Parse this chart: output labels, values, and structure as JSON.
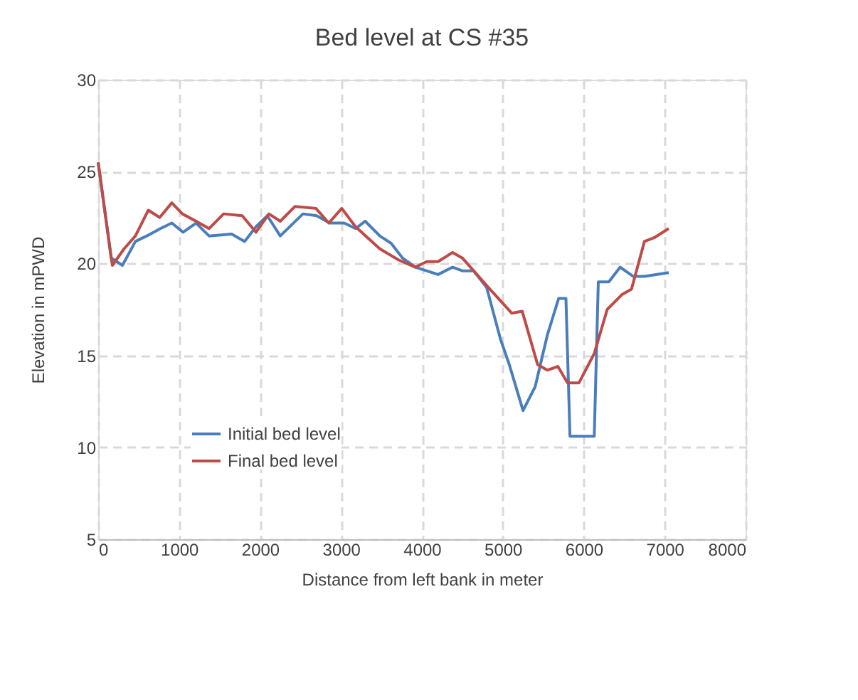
{
  "chart_data": {
    "type": "line",
    "title": "Bed level at CS #35",
    "xlabel": "Distance from left bank in meter",
    "ylabel": "Elevation in  mPWD",
    "xlim": [
      0,
      8000
    ],
    "xticks": [
      0,
      1000,
      2000,
      3000,
      4000,
      5000,
      6000,
      7000,
      8000
    ],
    "ylim": [
      5,
      30
    ],
    "yticks": [
      5,
      10,
      15,
      20,
      25,
      30
    ],
    "grid": true,
    "legend": "bottom left",
    "marker": "none",
    "line_style": "solid",
    "series": [
      {
        "name": "Initial bed level",
        "color": "#4a7ebb",
        "x": [
          0,
          160,
          300,
          460,
          600,
          770,
          910,
          1050,
          1210,
          1370,
          1650,
          1810,
          1950,
          2090,
          2250,
          2530,
          2700,
          2860,
          3040,
          3180,
          3300,
          3480,
          3620,
          3760,
          3920,
          4200,
          4380,
          4500,
          4640,
          4800,
          4970,
          5080,
          5250,
          5400,
          5550,
          5690,
          5780,
          5830,
          6130,
          6180,
          6310,
          6450,
          6610,
          6750,
          7050
        ],
        "values": [
          25.5,
          20.3,
          19.9,
          21.2,
          21.5,
          21.9,
          22.2,
          21.7,
          22.2,
          21.5,
          21.6,
          21.2,
          22.0,
          22.6,
          21.5,
          22.7,
          22.6,
          22.2,
          22.2,
          21.9,
          22.3,
          21.5,
          21.1,
          20.3,
          19.8,
          19.4,
          19.8,
          19.6,
          19.6,
          18.7,
          15.9,
          14.5,
          12.0,
          13.3,
          16.1,
          18.1,
          18.1,
          10.6,
          10.6,
          19.0,
          19.0,
          19.8,
          19.3,
          19.3,
          19.5
        ]
      },
      {
        "name": "Final bed level",
        "color": "#be4b48",
        "x": [
          0,
          175,
          320,
          460,
          620,
          760,
          910,
          1040,
          1210,
          1370,
          1550,
          1780,
          1950,
          2110,
          2250,
          2430,
          2690,
          2850,
          3010,
          3180,
          3480,
          3710,
          3920,
          4060,
          4200,
          4380,
          4500,
          4800,
          5110,
          5240,
          5430,
          5550,
          5680,
          5800,
          5940,
          6130,
          6290,
          6470,
          6590,
          6750,
          6870,
          7050
        ],
        "values": [
          25.5,
          19.9,
          20.8,
          21.5,
          22.9,
          22.5,
          23.3,
          22.7,
          22.3,
          21.9,
          22.7,
          22.6,
          21.7,
          22.7,
          22.3,
          23.1,
          23.0,
          22.2,
          23.0,
          22.0,
          20.8,
          20.2,
          19.8,
          20.1,
          20.1,
          20.6,
          20.3,
          18.8,
          17.3,
          17.4,
          14.5,
          14.2,
          14.4,
          13.5,
          13.5,
          15.1,
          17.5,
          18.3,
          18.6,
          21.2,
          21.4,
          21.9
        ]
      }
    ]
  }
}
